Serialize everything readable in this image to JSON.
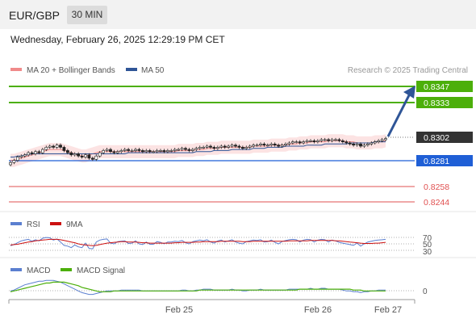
{
  "header": {
    "symbol": "EUR/GBP",
    "timeframe": "30 MIN"
  },
  "datetime": "Wednesday, February 26, 2025 12:29:19 PM CET",
  "price_panel": {
    "legend": [
      {
        "label": "MA 20 + Bollinger Bands",
        "color": "#f08a8a"
      },
      {
        "label": "MA 50",
        "color": "#2f5597"
      }
    ],
    "credit": "Research © 2025 Trading Central",
    "current_price": "0.8302",
    "levels": [
      {
        "value": "0.8347",
        "kind": "target",
        "color": "#4caf0a"
      },
      {
        "value": "0.8333",
        "kind": "target",
        "color": "#4caf0a"
      },
      {
        "value": "0.8281",
        "kind": "pivot",
        "color": "#1f5fd6"
      },
      {
        "value": "0.8258",
        "kind": "support",
        "color": "#e05050"
      },
      {
        "value": "0.8244",
        "kind": "support",
        "color": "#e05050"
      }
    ]
  },
  "rsi_panel": {
    "legend": [
      {
        "label": "RSI",
        "color": "#5b7fd0"
      },
      {
        "label": "9MA",
        "color": "#cc1010"
      }
    ],
    "levels": [
      "70",
      "50",
      "30"
    ]
  },
  "macd_panel": {
    "legend": [
      {
        "label": "MACD",
        "color": "#5b7fd0"
      },
      {
        "label": "MACD Signal",
        "color": "#4caf0a"
      }
    ],
    "zero_label": "0"
  },
  "x_axis": {
    "ticks": [
      "Feb 25",
      "Feb 26",
      "Feb 27"
    ]
  },
  "chart_data": {
    "type": "candlestick",
    "price_range": [
      0.8236,
      0.8353
    ],
    "close_series": [
      0.8278,
      0.828,
      0.8283,
      0.8284,
      0.8285,
      0.8287,
      0.8286,
      0.8288,
      0.8287,
      0.829,
      0.8292,
      0.8293,
      0.8292,
      0.8294,
      0.8292,
      0.8289,
      0.8287,
      0.8285,
      0.8286,
      0.8284,
      0.8283,
      0.8285,
      0.8282,
      0.8281,
      0.8284,
      0.8287,
      0.8289,
      0.829,
      0.8288,
      0.8287,
      0.8288,
      0.8289,
      0.829,
      0.8289,
      0.8289,
      0.829,
      0.8289,
      0.8288,
      0.8289,
      0.8288,
      0.8288,
      0.8289,
      0.8289,
      0.8288,
      0.8289,
      0.8289,
      0.829,
      0.829,
      0.8291,
      0.829,
      0.8289,
      0.829,
      0.8291,
      0.8292,
      0.8292,
      0.8293,
      0.8292,
      0.8291,
      0.8292,
      0.8293,
      0.8292,
      0.8293,
      0.8294,
      0.8293,
      0.8292,
      0.8291,
      0.8292,
      0.8293,
      0.8294,
      0.8294,
      0.8295,
      0.8294,
      0.8294,
      0.8295,
      0.8294,
      0.8293,
      0.8294,
      0.8295,
      0.8296,
      0.8297,
      0.8297,
      0.8296,
      0.8297,
      0.8298,
      0.8298,
      0.8297,
      0.8298,
      0.8299,
      0.8299,
      0.8298,
      0.8299,
      0.8299,
      0.8298,
      0.8297,
      0.8296,
      0.8295,
      0.8294,
      0.8295,
      0.8293,
      0.8294,
      0.8295,
      0.8296,
      0.8297,
      0.8298,
      0.8299,
      0.83
    ],
    "ma50": [
      0.8283,
      0.8283,
      0.8284,
      0.8284,
      0.8285,
      0.8285,
      0.8286,
      0.8286,
      0.8286,
      0.8286,
      0.8286,
      0.8286,
      0.8286,
      0.8286,
      0.8286,
      0.8286,
      0.8286,
      0.8286,
      0.8286,
      0.8286,
      0.8286,
      0.8286,
      0.8286,
      0.8286,
      0.8286,
      0.8286,
      0.8286,
      0.8286,
      0.8286,
      0.8286,
      0.8286,
      0.8286,
      0.8286,
      0.8287,
      0.8287,
      0.8287,
      0.8287,
      0.8287,
      0.8287,
      0.8287,
      0.8287,
      0.8287,
      0.8287,
      0.8287,
      0.8287,
      0.8287,
      0.8287,
      0.8287,
      0.8287,
      0.8287,
      0.8287,
      0.8287,
      0.8288,
      0.8288,
      0.8288,
      0.8288,
      0.8288,
      0.8289,
      0.8289,
      0.8289,
      0.8289,
      0.8289,
      0.829,
      0.829,
      0.829,
      0.829,
      0.829,
      0.829,
      0.8291,
      0.8291,
      0.8291,
      0.8291,
      0.8292,
      0.8292,
      0.8292,
      0.8292,
      0.8292,
      0.8293,
      0.8293,
      0.8293,
      0.8293,
      0.8293,
      0.8293,
      0.8294,
      0.8294,
      0.8294,
      0.8294,
      0.8294,
      0.8295,
      0.8295,
      0.8295,
      0.8295,
      0.8295,
      0.8295,
      0.8295,
      0.8296,
      0.8296,
      0.8296,
      0.8296,
      0.8296,
      0.8296,
      0.8296,
      0.8297,
      0.8297,
      0.8297,
      0.8297
    ],
    "ma20": [
      0.828,
      0.828,
      0.8281,
      0.8282,
      0.8283,
      0.8284,
      0.8285,
      0.8286,
      0.8287,
      0.8288,
      0.8289,
      0.829,
      0.829,
      0.829,
      0.829,
      0.8289,
      0.8288,
      0.8287,
      0.8286,
      0.8285,
      0.8284,
      0.8284,
      0.8285,
      0.8286,
      0.8287,
      0.8288,
      0.8288,
      0.8288,
      0.8288,
      0.8288,
      0.8288,
      0.8288,
      0.8288,
      0.8288,
      0.8288,
      0.8288,
      0.8288,
      0.8288,
      0.8288,
      0.8288,
      0.8288,
      0.8288,
      0.8288,
      0.8288,
      0.8288,
      0.8288,
      0.8288,
      0.8289,
      0.8289,
      0.8289,
      0.8289,
      0.8289,
      0.829,
      0.829,
      0.829,
      0.8291,
      0.8291,
      0.8291,
      0.8291,
      0.8292,
      0.8292,
      0.8292,
      0.8292,
      0.8292,
      0.8292,
      0.8292,
      0.8292,
      0.8292,
      0.8293,
      0.8293,
      0.8293,
      0.8293,
      0.8293,
      0.8294,
      0.8294,
      0.8294,
      0.8294,
      0.8294,
      0.8295,
      0.8295,
      0.8295,
      0.8296,
      0.8296,
      0.8296,
      0.8297,
      0.8297,
      0.8297,
      0.8297,
      0.8297,
      0.8298,
      0.8298,
      0.8298,
      0.8298,
      0.8298,
      0.8297,
      0.8297,
      0.8297,
      0.8296,
      0.8296,
      0.8296,
      0.8296,
      0.8296,
      0.8297,
      0.8297,
      0.8297,
      0.8298
    ],
    "bollinger_width": 0.0006,
    "rsi_range": [
      20,
      80
    ],
    "rsi": [
      45,
      48,
      53,
      58,
      60,
      62,
      57,
      61,
      58,
      65,
      67,
      66,
      60,
      63,
      55,
      46,
      44,
      40,
      47,
      42,
      40,
      52,
      38,
      37,
      55,
      60,
      62,
      63,
      52,
      50,
      56,
      57,
      58,
      51,
      52,
      58,
      50,
      48,
      55,
      49,
      49,
      56,
      54,
      50,
      55,
      55,
      57,
      56,
      59,
      53,
      50,
      56,
      58,
      60,
      58,
      61,
      55,
      52,
      58,
      60,
      55,
      58,
      61,
      55,
      52,
      50,
      56,
      58,
      60,
      59,
      61,
      55,
      56,
      60,
      54,
      50,
      56,
      59,
      61,
      62,
      61,
      55,
      60,
      62,
      61,
      55,
      60,
      62,
      61,
      55,
      60,
      58,
      54,
      52,
      50,
      48,
      46,
      52,
      44,
      50,
      55,
      57,
      59,
      60,
      61,
      62
    ],
    "rsi_ma9": [
      47,
      48,
      49,
      51,
      53,
      55,
      56,
      58,
      59,
      60,
      61,
      62,
      62,
      62,
      61,
      59,
      57,
      55,
      53,
      50,
      48,
      47,
      46,
      45,
      46,
      48,
      50,
      52,
      53,
      54,
      55,
      56,
      56,
      55,
      55,
      55,
      54,
      53,
      53,
      52,
      52,
      52,
      52,
      52,
      52,
      52,
      53,
      53,
      54,
      54,
      54,
      54,
      55,
      55,
      56,
      56,
      56,
      56,
      56,
      57,
      57,
      57,
      57,
      57,
      57,
      56,
      56,
      56,
      57,
      57,
      57,
      57,
      57,
      57,
      57,
      57,
      57,
      57,
      58,
      58,
      58,
      58,
      58,
      58,
      59,
      59,
      59,
      59,
      59,
      59,
      59,
      58,
      58,
      57,
      56,
      55,
      54,
      53,
      52,
      51,
      51,
      51,
      52,
      52,
      53,
      54
    ],
    "macd_range": [
      -0.0008,
      0.0016
    ],
    "macd": [
      0.0001,
      0.0002,
      0.0004,
      0.0006,
      0.0008,
      0.0009,
      0.001,
      0.0011,
      0.0012,
      0.0012,
      0.0013,
      0.0013,
      0.0013,
      0.0012,
      0.0011,
      0.0009,
      0.0007,
      0.0005,
      0.0003,
      0.0001,
      -0.0001,
      -0.0002,
      -0.0003,
      -0.0003,
      -0.0002,
      -0.0001,
      0.0,
      0.0001,
      0.0001,
      0.0001,
      0.0001,
      0.0002,
      0.0002,
      0.0002,
      0.0002,
      0.0002,
      0.0002,
      0.0001,
      0.0001,
      0.0001,
      0.0001,
      0.0001,
      0.0001,
      0.0001,
      0.0001,
      0.0001,
      0.0001,
      0.0001,
      0.0002,
      0.0002,
      0.0001,
      0.0001,
      0.0002,
      0.0002,
      0.0003,
      0.0003,
      0.0003,
      0.0002,
      0.0002,
      0.0002,
      0.0002,
      0.0002,
      0.0003,
      0.0002,
      0.0002,
      0.0001,
      0.0001,
      0.0002,
      0.0002,
      0.0002,
      0.0003,
      0.0002,
      0.0002,
      0.0002,
      0.0002,
      0.0002,
      0.0002,
      0.0002,
      0.0003,
      0.0003,
      0.0003,
      0.0003,
      0.0003,
      0.0003,
      0.0004,
      0.0003,
      0.0003,
      0.0004,
      0.0004,
      0.0003,
      0.0003,
      0.0003,
      0.0003,
      0.0002,
      0.0001,
      0.0001,
      0.0,
      0.0,
      -0.0001,
      0.0,
      0.0,
      0.0001,
      0.0001,
      0.0002,
      0.0002,
      0.0002
    ],
    "macd_signal": [
      0.0,
      0.0001,
      0.0002,
      0.0003,
      0.0004,
      0.0005,
      0.0006,
      0.0007,
      0.0008,
      0.0009,
      0.001,
      0.001,
      0.0011,
      0.0011,
      0.0011,
      0.0011,
      0.001,
      0.0009,
      0.0008,
      0.0007,
      0.0005,
      0.0004,
      0.0003,
      0.0002,
      0.0001,
      0.0,
      0.0,
      0.0,
      0.0,
      0.0001,
      0.0001,
      0.0001,
      0.0001,
      0.0001,
      0.0001,
      0.0001,
      0.0001,
      0.0001,
      0.0001,
      0.0001,
      0.0001,
      0.0001,
      0.0001,
      0.0001,
      0.0001,
      0.0001,
      0.0001,
      0.0001,
      0.0001,
      0.0001,
      0.0001,
      0.0001,
      0.0001,
      0.0002,
      0.0002,
      0.0002,
      0.0002,
      0.0002,
      0.0002,
      0.0002,
      0.0002,
      0.0002,
      0.0002,
      0.0002,
      0.0002,
      0.0002,
      0.0002,
      0.0002,
      0.0002,
      0.0002,
      0.0002,
      0.0002,
      0.0002,
      0.0002,
      0.0002,
      0.0002,
      0.0002,
      0.0002,
      0.0002,
      0.0002,
      0.0002,
      0.0003,
      0.0003,
      0.0003,
      0.0003,
      0.0003,
      0.0003,
      0.0003,
      0.0003,
      0.0003,
      0.0003,
      0.0003,
      0.0003,
      0.0003,
      0.0003,
      0.0003,
      0.0002,
      0.0002,
      0.0002,
      0.0001,
      0.0001,
      0.0001,
      0.0001,
      0.0001,
      0.0001,
      0.0001
    ]
  }
}
